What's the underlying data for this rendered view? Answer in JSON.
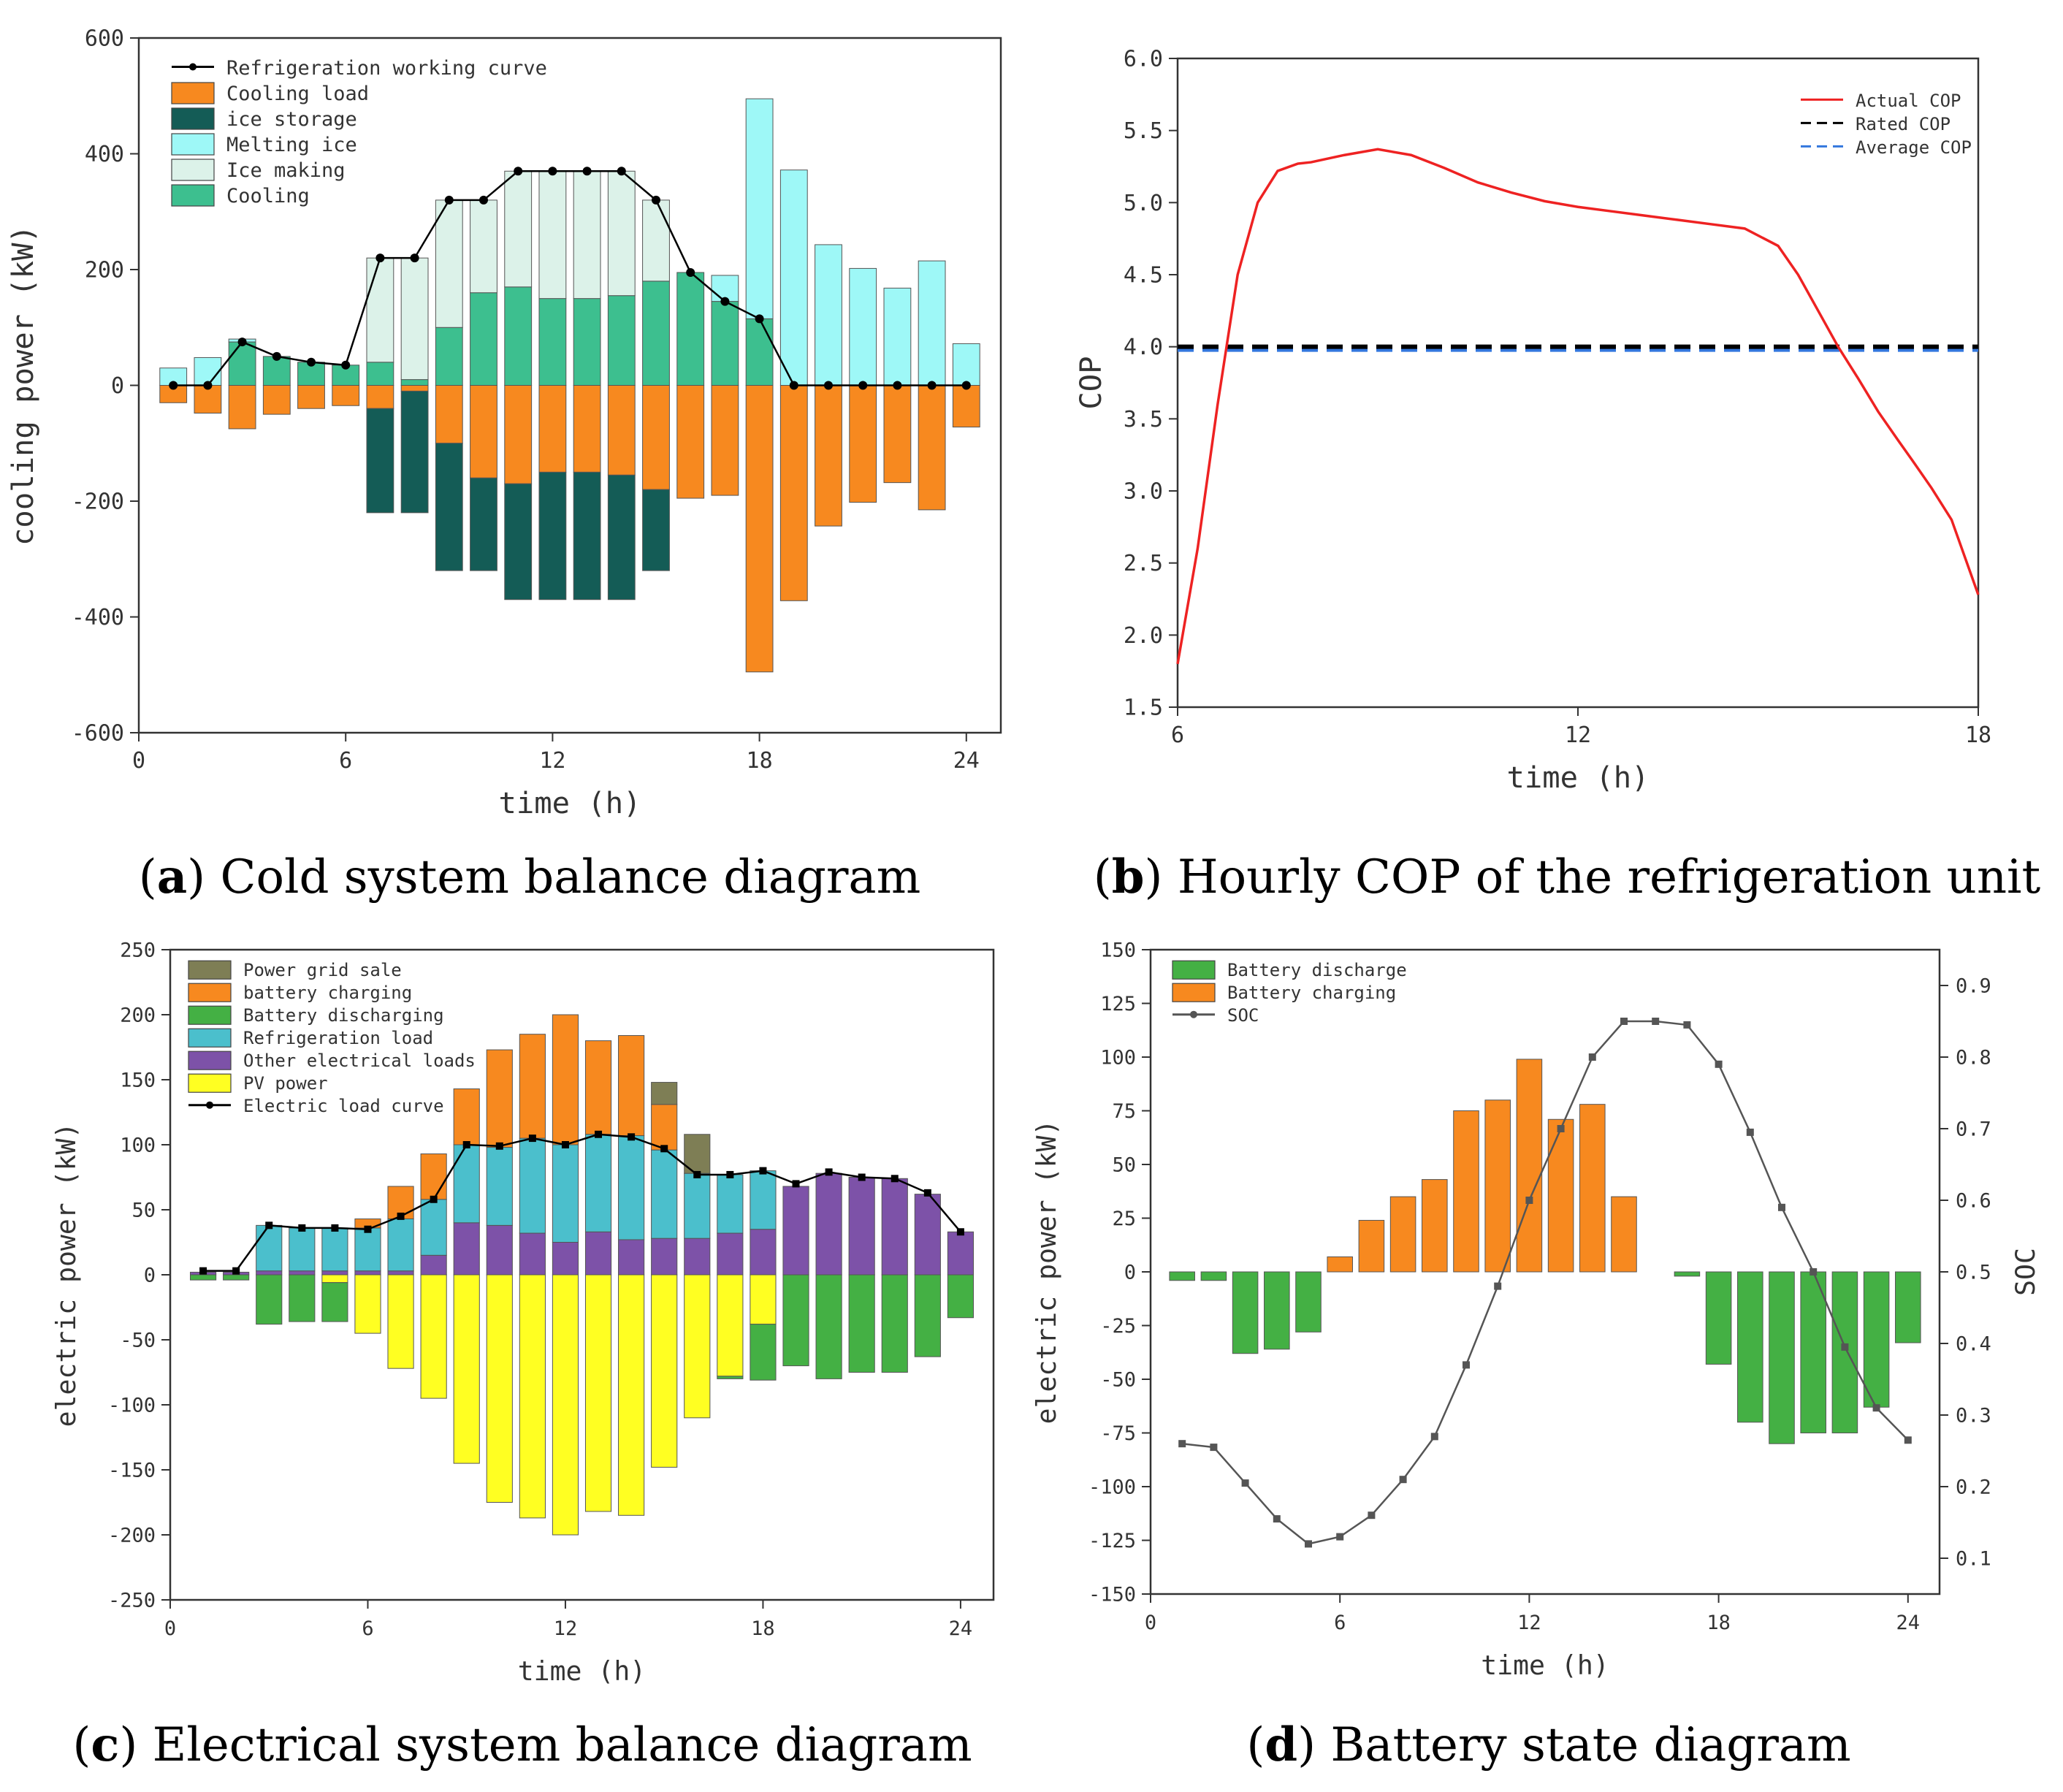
{
  "panels": [
    {
      "id": "a",
      "caption_letter": "a",
      "caption": "Cold system balance diagram",
      "chart_data": {
        "type": "bar",
        "xlabel": "time (h)",
        "ylabel": "cooling power (kW)",
        "xlim": [
          0,
          25
        ],
        "ylim": [
          -600,
          600
        ],
        "xticks": [
          0,
          6,
          12,
          18,
          24
        ],
        "yticks": [
          -600,
          -400,
          -200,
          0,
          200,
          400,
          600
        ],
        "legend_position": "top-left",
        "hours": [
          1,
          2,
          3,
          4,
          5,
          6,
          7,
          8,
          9,
          10,
          11,
          12,
          13,
          14,
          15,
          16,
          17,
          18,
          19,
          20,
          21,
          22,
          23,
          24
        ],
        "series": [
          {
            "name": "Cooling",
            "color": "#3dbf8f",
            "stack": "pos",
            "values": [
              0,
              0,
              75,
              50,
              40,
              35,
              40,
              10,
              100,
              160,
              170,
              150,
              150,
              155,
              180,
              195,
              145,
              115,
              0,
              0,
              0,
              0,
              0,
              0
            ]
          },
          {
            "name": "Ice making",
            "color": "#dcf2e9",
            "stack": "pos",
            "values": [
              0,
              0,
              0,
              0,
              0,
              0,
              180,
              210,
              220,
              160,
              200,
              220,
              220,
              215,
              140,
              0,
              0,
              0,
              0,
              0,
              0,
              0,
              0,
              0
            ]
          },
          {
            "name": "Melting ice",
            "color": "#9ef8f7",
            "stack": "pos",
            "values": [
              30,
              48,
              5,
              0,
              0,
              0,
              0,
              0,
              0,
              0,
              0,
              0,
              0,
              0,
              0,
              0,
              45,
              380,
              372,
              243,
              202,
              168,
              215,
              72
            ]
          },
          {
            "name": "Cooling load",
            "color": "#f7891f",
            "stack": "neg",
            "values": [
              -30,
              -48,
              -75,
              -50,
              -40,
              -35,
              -40,
              -10,
              -100,
              -160,
              -170,
              -150,
              -150,
              -155,
              -180,
              -195,
              -190,
              -495,
              -372,
              -243,
              -202,
              -168,
              -215,
              -72
            ]
          },
          {
            "name": "ice storage",
            "color": "#145c56",
            "stack": "neg",
            "values": [
              0,
              0,
              0,
              0,
              0,
              0,
              -180,
              -210,
              -220,
              -160,
              -200,
              -220,
              -220,
              -215,
              -140,
              0,
              0,
              0,
              0,
              0,
              0,
              0,
              0,
              0
            ]
          }
        ],
        "line": {
          "name": "Refrigeration working curve",
          "color": "#000000",
          "values": [
            0,
            0,
            75,
            50,
            40,
            35,
            220,
            220,
            320,
            320,
            370,
            370,
            370,
            370,
            320,
            195,
            145,
            115,
            0,
            0,
            0,
            0,
            0,
            0
          ]
        },
        "legend_order": [
          "Refrigeration working curve",
          "Cooling load",
          "ice storage",
          "Melting ice",
          "Ice making",
          "Cooling"
        ]
      }
    },
    {
      "id": "b",
      "caption_letter": "b",
      "caption": "Hourly COP of the refrigeration unit",
      "chart_data": {
        "type": "line",
        "xlabel": "time (h)",
        "ylabel": "COP",
        "xlim": [
          6,
          18
        ],
        "ylim": [
          1.5,
          6.0
        ],
        "xticks": [
          6,
          12,
          18
        ],
        "yticks": [
          "1.5",
          "2.0",
          "2.5",
          "3.0",
          "3.5",
          "4.0",
          "4.5",
          "5.0",
          "5.5",
          "6.0"
        ],
        "legend_position": "top-right",
        "series": [
          {
            "name": "Actual COP",
            "color": "#ee2222",
            "style": "solid",
            "x": [
              6.0,
              6.3,
              6.6,
              6.9,
              7.2,
              7.5,
              7.8,
              8.0,
              8.5,
              9.0,
              9.5,
              10.0,
              10.5,
              11.0,
              11.5,
              12.0,
              12.5,
              13.0,
              13.5,
              14.0,
              14.5,
              15.0,
              15.3,
              15.6,
              15.9,
              16.2,
              16.5,
              16.8,
              17.0,
              17.3,
              17.6,
              18.0
            ],
            "y": [
              1.8,
              2.6,
              3.6,
              4.5,
              5.0,
              5.22,
              5.27,
              5.28,
              5.33,
              5.37,
              5.33,
              5.24,
              5.14,
              5.07,
              5.01,
              4.97,
              4.94,
              4.91,
              4.88,
              4.85,
              4.82,
              4.7,
              4.5,
              4.25,
              4.0,
              3.78,
              3.55,
              3.35,
              3.22,
              3.02,
              2.8,
              2.28
            ]
          },
          {
            "name": "Rated COP",
            "color": "#000000",
            "style": "dashed",
            "x": [
              6,
              18
            ],
            "y": [
              4.0,
              4.0
            ]
          },
          {
            "name": "Average COP",
            "color": "#3377dd",
            "style": "dashed",
            "x": [
              6,
              18
            ],
            "y": [
              3.98,
              3.98
            ]
          }
        ]
      }
    },
    {
      "id": "c",
      "caption_letter": "c",
      "caption": "Electrical system balance diagram",
      "chart_data": {
        "type": "bar",
        "xlabel": "time (h)",
        "ylabel": "electric power (kW)",
        "xlim": [
          0,
          25
        ],
        "ylim": [
          -250,
          250
        ],
        "xticks": [
          0,
          6,
          12,
          18,
          24
        ],
        "yticks": [
          -250,
          -200,
          -150,
          -100,
          -50,
          0,
          50,
          100,
          150,
          200,
          250
        ],
        "legend_position": "top-left",
        "hours": [
          1,
          2,
          3,
          4,
          5,
          6,
          7,
          8,
          9,
          10,
          11,
          12,
          13,
          14,
          15,
          16,
          17,
          18,
          19,
          20,
          21,
          22,
          23,
          24
        ],
        "series": [
          {
            "name": "Other electrical loads",
            "color": "#7d52a8",
            "stack": "pos",
            "values": [
              2,
              2,
              3,
              3,
              3,
              3,
              3,
              15,
              40,
              38,
              32,
              25,
              33,
              27,
              28,
              28,
              32,
              35,
              68,
              78,
              75,
              74,
              62,
              33
            ]
          },
          {
            "name": "Refrigeration load",
            "color": "#4bbfcc",
            "stack": "pos",
            "values": [
              0,
              0,
              35,
              33,
              33,
              33,
              40,
              43,
              60,
              60,
              73,
              75,
              75,
              80,
              68,
              50,
              45,
              45,
              0,
              0,
              0,
              0,
              0,
              0
            ]
          },
          {
            "name": "battery charging",
            "color": "#f7891f",
            "stack": "pos",
            "values": [
              0,
              0,
              0,
              0,
              0,
              7,
              25,
              35,
              43,
              75,
              80,
              100,
              72,
              77,
              35,
              0,
              0,
              0,
              0,
              0,
              0,
              0,
              0,
              0
            ]
          },
          {
            "name": "Power grid sale",
            "color": "#7e7e55",
            "stack": "pos",
            "values": [
              0,
              0,
              0,
              0,
              0,
              0,
              0,
              0,
              0,
              0,
              0,
              0,
              0,
              0,
              17,
              30,
              0,
              0,
              0,
              0,
              0,
              0,
              0,
              0
            ]
          },
          {
            "name": "PV power",
            "color": "#ffff22",
            "stack": "neg",
            "values": [
              0,
              0,
              0,
              0,
              -6,
              -45,
              -72,
              -95,
              -145,
              -175,
              -187,
              -200,
              -182,
              -185,
              -148,
              -110,
              -78,
              -38,
              0,
              0,
              0,
              0,
              0,
              0
            ]
          },
          {
            "name": "Battery discharging",
            "color": "#44b044",
            "stack": "neg",
            "values": [
              -4,
              -4,
              -38,
              -36,
              -30,
              0,
              0,
              0,
              0,
              0,
              0,
              0,
              0,
              0,
              0,
              0,
              -2,
              -43,
              -70,
              -80,
              -75,
              -75,
              -63,
              -33
            ]
          }
        ],
        "line": {
          "name": "Electric load curve",
          "color": "#000000",
          "values": [
            3,
            3,
            38,
            36,
            36,
            35,
            45,
            58,
            100,
            99,
            105,
            100,
            108,
            106,
            97,
            77,
            77,
            80,
            70,
            79,
            75,
            74,
            63,
            33
          ]
        },
        "legend_order": [
          "Power grid sale",
          "battery charging",
          "Battery discharging",
          "Refrigeration load",
          "Other electrical loads",
          "PV power",
          "Electric load curve"
        ]
      }
    },
    {
      "id": "d",
      "caption_letter": "d",
      "caption": "Battery state diagram",
      "chart_data": {
        "type": "bar",
        "xlabel": "time (h)",
        "ylabel": "electric power (kW)",
        "y2label": "SOC",
        "xlim": [
          0,
          25
        ],
        "ylim": [
          -150,
          150
        ],
        "y2lim": [
          0.05,
          0.95
        ],
        "xticks": [
          0,
          6,
          12,
          18,
          24
        ],
        "yticks": [
          -150,
          -125,
          -100,
          -75,
          -50,
          -25,
          0,
          25,
          50,
          75,
          100,
          125,
          150
        ],
        "y2ticks": [
          "0.1",
          "0.2",
          "0.3",
          "0.4",
          "0.5",
          "0.6",
          "0.7",
          "0.8",
          "0.9"
        ],
        "legend_position": "top-left",
        "hours": [
          1,
          2,
          3,
          4,
          5,
          6,
          7,
          8,
          9,
          10,
          11,
          12,
          13,
          14,
          15,
          16,
          17,
          18,
          19,
          20,
          21,
          22,
          23,
          24
        ],
        "series": [
          {
            "name": "Battery discharge",
            "color": "#44b044",
            "values": [
              -4,
              -4,
              -38,
              -36,
              -28,
              0,
              0,
              0,
              0,
              0,
              0,
              0,
              0,
              0,
              0,
              0,
              -2,
              -43,
              -70,
              -80,
              -75,
              -75,
              -63,
              -33
            ]
          },
          {
            "name": "Battery charging",
            "color": "#f7891f",
            "values": [
              0,
              0,
              0,
              0,
              0,
              7,
              24,
              35,
              43,
              75,
              80,
              99,
              71,
              78,
              35,
              0,
              0,
              0,
              0,
              0,
              0,
              0,
              0,
              0
            ]
          }
        ],
        "line": {
          "name": "SOC",
          "color": "#555555",
          "axis": "y2",
          "values": [
            0.26,
            0.255,
            0.205,
            0.155,
            0.12,
            0.13,
            0.16,
            0.21,
            0.27,
            0.37,
            0.48,
            0.6,
            0.7,
            0.8,
            0.85,
            0.85,
            0.845,
            0.79,
            0.695,
            0.59,
            0.5,
            0.395,
            0.31,
            0.265
          ]
        },
        "legend_order": [
          "Battery discharge",
          "Battery charging",
          "SOC"
        ]
      }
    }
  ]
}
